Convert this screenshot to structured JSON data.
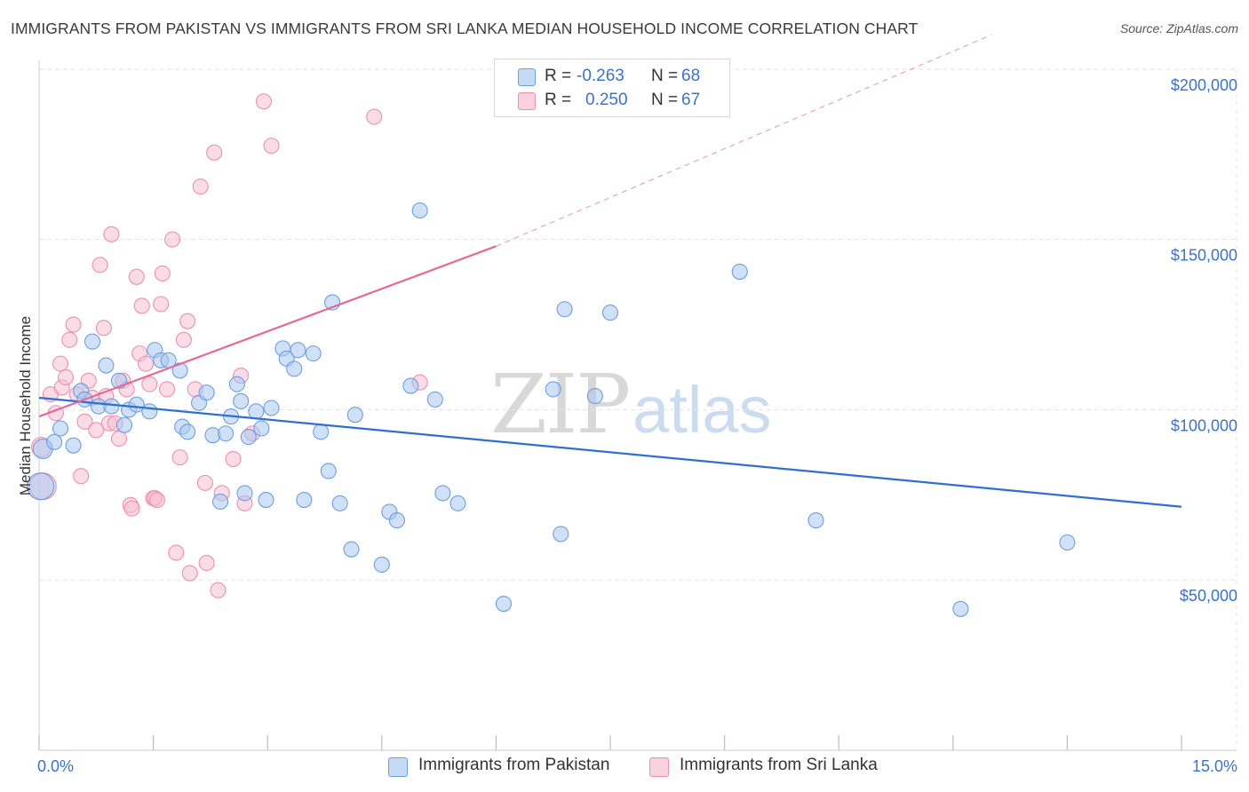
{
  "header": {
    "title": "IMMIGRANTS FROM PAKISTAN VS IMMIGRANTS FROM SRI LANKA MEDIAN HOUSEHOLD INCOME CORRELATION CHART",
    "source": "Source: ZipAtlas.com"
  },
  "watermark": {
    "zip": "ZIP",
    "atlas": "atlas"
  },
  "colors": {
    "blue_fill": "#a9c8f0",
    "blue_stroke": "#6d9ee0",
    "blue_line": "#2f6fcf",
    "pink_fill": "#f6bfd1",
    "pink_stroke": "#ec8fb0",
    "pink_line": "#e46a95",
    "tick_text": "#3b72c8",
    "grid": "#e3e3e3"
  },
  "legend": {
    "r_label": "R =",
    "n_label": "N =",
    "rows": [
      {
        "series": "Immigrants from Pakistan",
        "r": "-0.263",
        "n": "68"
      },
      {
        "series": "Immigrants from Sri Lanka",
        "r": "0.250",
        "n": "67"
      }
    ]
  },
  "chart_data": {
    "type": "scatter",
    "title": "IMMIGRANTS FROM PAKISTAN VS IMMIGRANTS FROM SRI LANKA MEDIAN HOUSEHOLD INCOME CORRELATION CHART",
    "xlabel": "",
    "ylabel": "Median Household Income",
    "xlim": [
      0,
      15
    ],
    "ylim": [
      0,
      210000
    ],
    "x_tick_labels": [
      "0.0%",
      "15.0%"
    ],
    "y_ticks": [
      50000,
      100000,
      150000,
      200000
    ],
    "y_tick_labels": [
      "$50,000",
      "$100,000",
      "$150,000",
      "$200,000"
    ],
    "grid": true,
    "legend_position": "top-center",
    "series": [
      {
        "name": "Immigrants from Pakistan",
        "color": "#6d9ee0",
        "trend": {
          "x": [
            0.0,
            15.0
          ],
          "y": [
            103500,
            71500
          ],
          "extrapolated": false
        },
        "points": [
          [
            0.05,
            88500
          ],
          [
            0.02,
            77500
          ],
          [
            0.2,
            90500
          ],
          [
            0.28,
            94500
          ],
          [
            0.45,
            89500
          ],
          [
            0.55,
            105500
          ],
          [
            0.6,
            103000
          ],
          [
            0.7,
            120000
          ],
          [
            0.78,
            101000
          ],
          [
            0.88,
            113000
          ],
          [
            0.95,
            101000
          ],
          [
            1.05,
            108500
          ],
          [
            1.12,
            95500
          ],
          [
            1.18,
            100000
          ],
          [
            1.28,
            101500
          ],
          [
            1.45,
            99500
          ],
          [
            1.52,
            117500
          ],
          [
            1.6,
            114500
          ],
          [
            1.7,
            114500
          ],
          [
            1.85,
            111500
          ],
          [
            1.88,
            95000
          ],
          [
            1.95,
            93500
          ],
          [
            2.1,
            102000
          ],
          [
            2.2,
            105000
          ],
          [
            2.28,
            92500
          ],
          [
            2.38,
            73000
          ],
          [
            2.45,
            93000
          ],
          [
            2.52,
            98000
          ],
          [
            2.6,
            107500
          ],
          [
            2.65,
            102500
          ],
          [
            2.7,
            75500
          ],
          [
            2.75,
            92000
          ],
          [
            2.85,
            99500
          ],
          [
            2.92,
            94500
          ],
          [
            2.98,
            73500
          ],
          [
            3.05,
            100500
          ],
          [
            3.2,
            118000
          ],
          [
            3.25,
            115000
          ],
          [
            3.35,
            112000
          ],
          [
            3.4,
            117500
          ],
          [
            3.48,
            73500
          ],
          [
            3.6,
            116500
          ],
          [
            3.7,
            93500
          ],
          [
            3.8,
            82000
          ],
          [
            3.85,
            131500
          ],
          [
            3.95,
            72500
          ],
          [
            4.1,
            59000
          ],
          [
            4.15,
            98500
          ],
          [
            4.5,
            54500
          ],
          [
            4.6,
            70000
          ],
          [
            4.7,
            67500
          ],
          [
            4.88,
            107000
          ],
          [
            5.0,
            158500
          ],
          [
            5.2,
            103000
          ],
          [
            5.3,
            75500
          ],
          [
            5.5,
            72500
          ],
          [
            6.1,
            43000
          ],
          [
            6.75,
            106000
          ],
          [
            6.85,
            63500
          ],
          [
            6.9,
            129500
          ],
          [
            7.3,
            104000
          ],
          [
            7.5,
            128500
          ],
          [
            9.2,
            140500
          ],
          [
            10.2,
            67500
          ],
          [
            12.1,
            41500
          ],
          [
            13.5,
            61000
          ]
        ]
      },
      {
        "name": "Immigrants from Sri Lanka",
        "color": "#ec8fb0",
        "trend": {
          "x": [
            0.0,
            6.0
          ],
          "y": [
            98000,
            148000
          ],
          "dashed_extension_to": [
            12.5,
            210000
          ]
        },
        "points": [
          [
            0.03,
            89000
          ],
          [
            0.05,
            77500
          ],
          [
            0.15,
            104500
          ],
          [
            0.22,
            99000
          ],
          [
            0.28,
            113500
          ],
          [
            0.3,
            106500
          ],
          [
            0.35,
            109500
          ],
          [
            0.4,
            120500
          ],
          [
            0.45,
            125000
          ],
          [
            0.5,
            104500
          ],
          [
            0.55,
            80500
          ],
          [
            0.6,
            96500
          ],
          [
            0.65,
            108500
          ],
          [
            0.7,
            103500
          ],
          [
            0.75,
            94000
          ],
          [
            0.8,
            142500
          ],
          [
            0.85,
            124000
          ],
          [
            0.88,
            104000
          ],
          [
            0.92,
            96000
          ],
          [
            0.95,
            151500
          ],
          [
            1.0,
            96000
          ],
          [
            1.05,
            91500
          ],
          [
            1.1,
            108500
          ],
          [
            1.15,
            106000
          ],
          [
            1.2,
            72000
          ],
          [
            1.22,
            71000
          ],
          [
            1.28,
            139000
          ],
          [
            1.32,
            116500
          ],
          [
            1.35,
            130500
          ],
          [
            1.4,
            113500
          ],
          [
            1.45,
            107500
          ],
          [
            1.5,
            74000
          ],
          [
            1.52,
            74000
          ],
          [
            1.55,
            73500
          ],
          [
            1.6,
            131000
          ],
          [
            1.62,
            140000
          ],
          [
            1.68,
            106000
          ],
          [
            1.75,
            150000
          ],
          [
            1.8,
            58000
          ],
          [
            1.85,
            86000
          ],
          [
            1.9,
            120500
          ],
          [
            1.95,
            126000
          ],
          [
            1.98,
            52000
          ],
          [
            2.05,
            106000
          ],
          [
            2.12,
            165500
          ],
          [
            2.18,
            78500
          ],
          [
            2.2,
            55000
          ],
          [
            2.3,
            175500
          ],
          [
            2.35,
            47000
          ],
          [
            2.4,
            75500
          ],
          [
            2.55,
            85500
          ],
          [
            2.65,
            110000
          ],
          [
            2.7,
            72500
          ],
          [
            2.8,
            93000
          ],
          [
            2.95,
            190500
          ],
          [
            3.05,
            177500
          ],
          [
            4.4,
            186000
          ],
          [
            5.0,
            108000
          ]
        ]
      }
    ]
  }
}
